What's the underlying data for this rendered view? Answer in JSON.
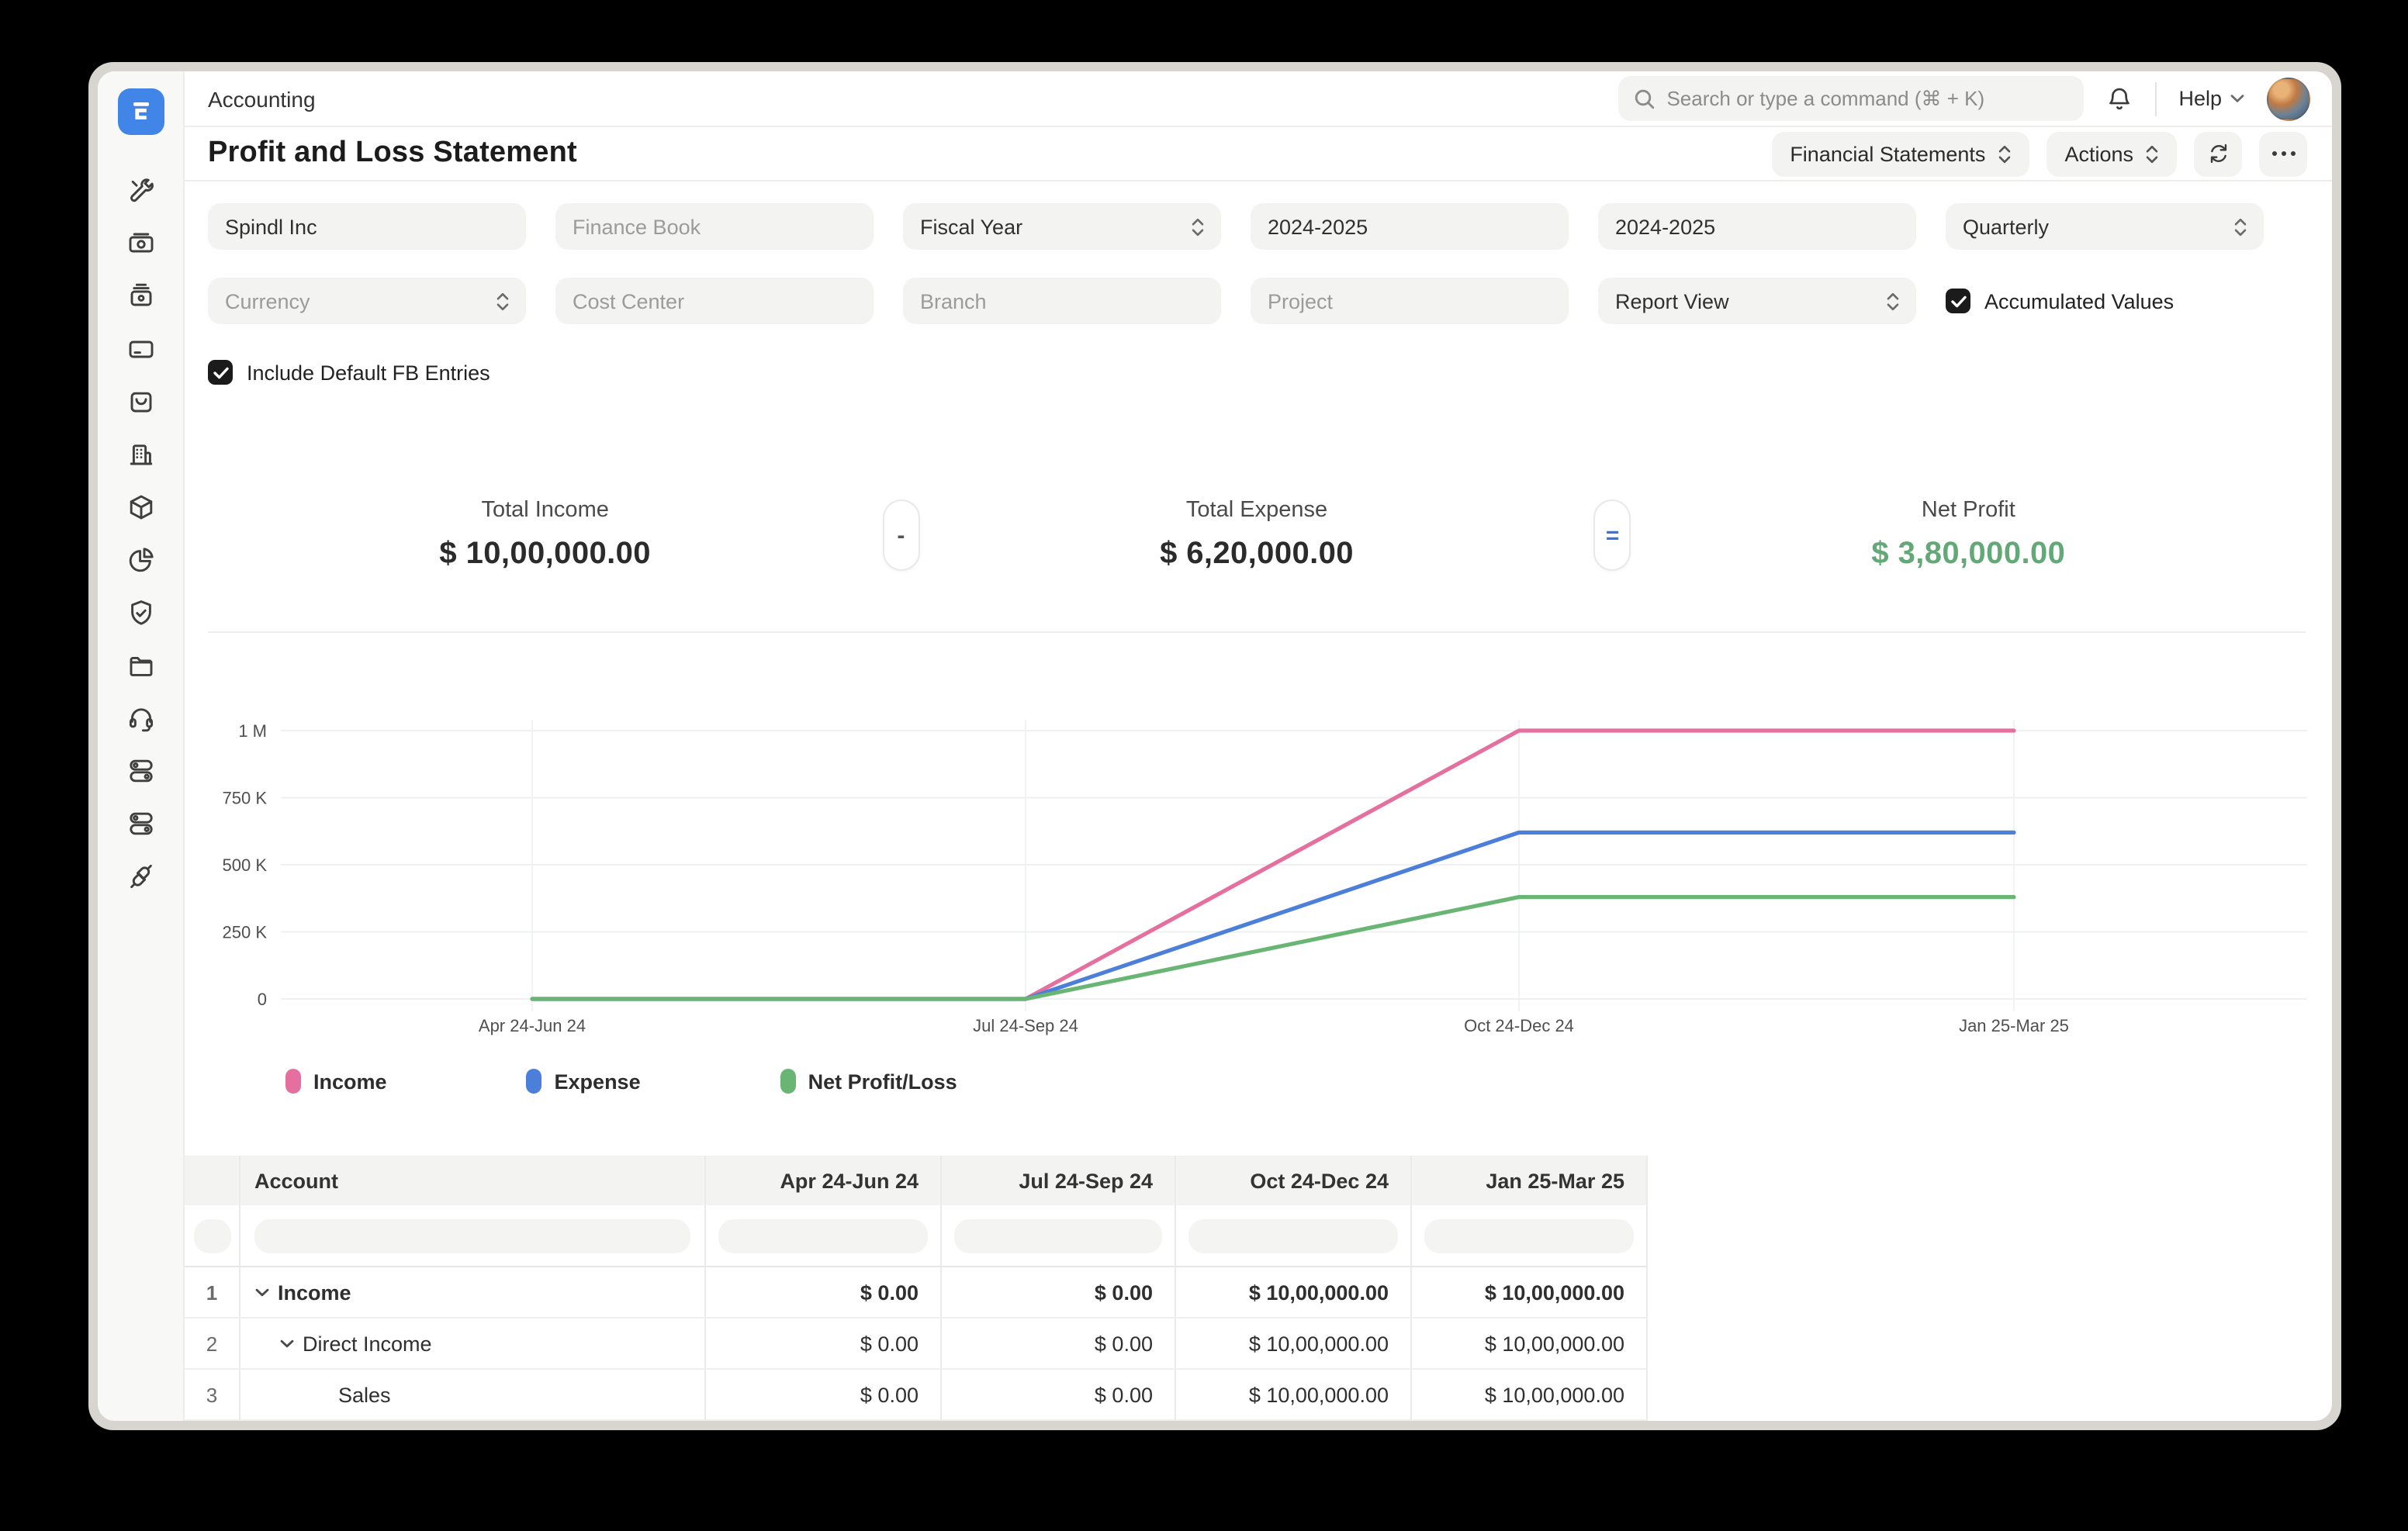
{
  "topbar": {
    "breadcrumb": "Accounting",
    "search_placeholder": "Search or type a command (⌘ + K)",
    "help_label": "Help"
  },
  "toolbar": {
    "title": "Profit and Loss Statement",
    "report_switcher_label": "Financial Statements",
    "actions_label": "Actions"
  },
  "filters": {
    "row1": [
      {
        "text": "Spindl Inc",
        "muted": false,
        "select": false
      },
      {
        "text": "Finance Book",
        "muted": true,
        "select": false
      },
      {
        "text": "Fiscal Year",
        "muted": false,
        "select": true
      },
      {
        "text": "2024-2025",
        "muted": false,
        "select": false
      },
      {
        "text": "2024-2025",
        "muted": false,
        "select": false
      },
      {
        "text": "Quarterly",
        "muted": false,
        "select": true
      }
    ],
    "row2": [
      {
        "text": "Currency",
        "muted": true,
        "select": true
      },
      {
        "text": "Cost Center",
        "muted": true,
        "select": false
      },
      {
        "text": "Branch",
        "muted": true,
        "select": false
      },
      {
        "text": "Project",
        "muted": true,
        "select": false
      },
      {
        "text": "Report View",
        "muted": false,
        "select": true
      },
      {
        "checkbox": true,
        "checked": true,
        "text": "Accumulated Values"
      }
    ],
    "row3": [
      {
        "checkbox": true,
        "checked": true,
        "text": "Include Default FB Entries"
      }
    ]
  },
  "summary": {
    "cards": [
      {
        "label": "Total Income",
        "value": "$ 10,00,000.00",
        "color": "#2b2b2b"
      },
      {
        "label": "Total Expense",
        "value": "$ 6,20,000.00",
        "color": "#2b2b2b"
      },
      {
        "label": "Net Profit",
        "value": "$ 3,80,000.00",
        "color": "#63a877"
      }
    ],
    "operators": [
      "-",
      "="
    ]
  },
  "chart_data": {
    "type": "line",
    "categories": [
      "Apr 24-Jun 24",
      "Jul 24-Sep 24",
      "Oct 24-Dec 24",
      "Jan 25-Mar 25"
    ],
    "series": [
      {
        "name": "Income",
        "color": "#e5709f",
        "values": [
          0,
          0,
          1000000,
          1000000
        ]
      },
      {
        "name": "Expense",
        "color": "#4c7fd9",
        "values": [
          0,
          0,
          620000,
          620000
        ]
      },
      {
        "name": "Net Profit/Loss",
        "color": "#68b574",
        "values": [
          0,
          0,
          380000,
          380000
        ]
      }
    ],
    "ylim": [
      0,
      1000000
    ],
    "y_ticks": [
      "0",
      "250 K",
      "500 K",
      "750 K",
      "1 M"
    ],
    "y_tick_values": [
      0,
      250000,
      500000,
      750000,
      1000000
    ],
    "grid": true,
    "legend_position": "bottom"
  },
  "table": {
    "columns": [
      "Account",
      "Apr 24-Jun 24",
      "Jul 24-Sep 24",
      "Oct 24-Dec 24",
      "Jan 25-Mar 25"
    ],
    "rows": [
      {
        "num": "1",
        "account": "Income",
        "indent": 0,
        "chevron": true,
        "bold": true,
        "values": [
          "$ 0.00",
          "$ 0.00",
          "$ 10,00,000.00",
          "$ 10,00,000.00"
        ]
      },
      {
        "num": "2",
        "account": "Direct Income",
        "indent": 1,
        "chevron": true,
        "bold": false,
        "values": [
          "$ 0.00",
          "$ 0.00",
          "$ 10,00,000.00",
          "$ 10,00,000.00"
        ]
      },
      {
        "num": "3",
        "account": "Sales",
        "indent": 2,
        "chevron": false,
        "bold": false,
        "values": [
          "$ 0.00",
          "$ 0.00",
          "$ 10,00,000.00",
          "$ 10,00,000.00"
        ]
      }
    ]
  },
  "sidebar": {
    "icons": [
      "tools",
      "money",
      "cash-register",
      "credit-card",
      "shopping-bag",
      "building",
      "package",
      "pie-chart",
      "shield-check",
      "folder",
      "headset",
      "toggles",
      "toggles-2",
      "plug"
    ]
  }
}
